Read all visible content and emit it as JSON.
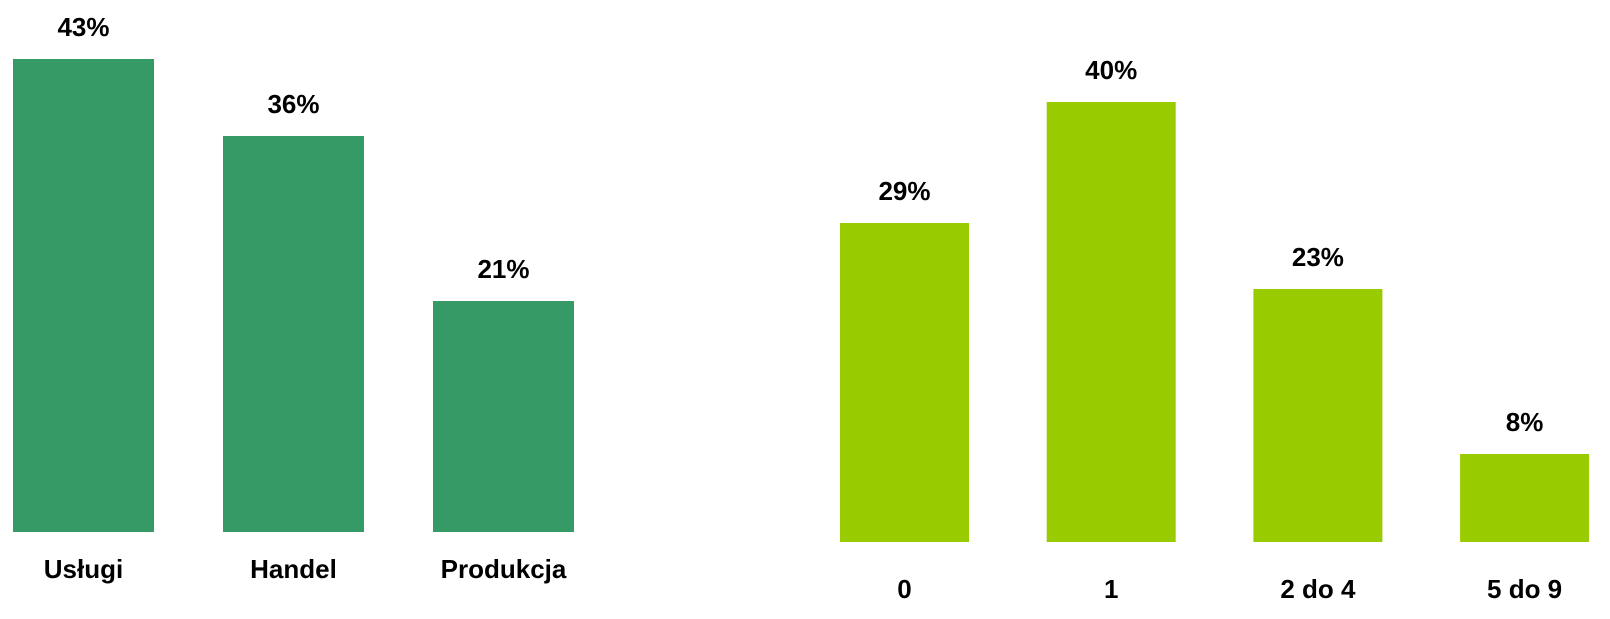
{
  "chart_data": [
    {
      "type": "bar",
      "categories": [
        "Usługi",
        "Handel",
        "Produkcja"
      ],
      "values": [
        43,
        36,
        21
      ],
      "value_labels": [
        "43%",
        "36%",
        "21%"
      ],
      "color": "#359a66"
    },
    {
      "type": "bar",
      "categories": [
        "0",
        "1",
        "2 do 4",
        "5 do 9"
      ],
      "values": [
        29,
        40,
        23,
        8
      ],
      "value_labels": [
        "29%",
        "40%",
        "23%",
        "8%"
      ],
      "color": "#99cc00"
    }
  ]
}
